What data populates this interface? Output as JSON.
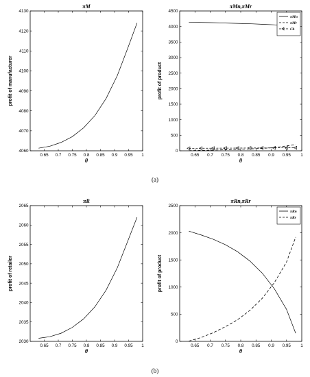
{
  "figure": {
    "caption_a": "(a)",
    "caption_b": "(b)"
  },
  "chart_data": [
    {
      "type": "line",
      "title": "πM",
      "title_main": "π",
      "title_sub": "M",
      "xlabel": "θ",
      "ylabel": "profit of manufacturer",
      "xlim": [
        0.6,
        1.0
      ],
      "ylim": [
        4060,
        4130
      ],
      "xticks": [
        0.65,
        0.7,
        0.75,
        0.8,
        0.85,
        0.9,
        0.95,
        1
      ],
      "xtick_labels": [
        "0.65",
        "0.7",
        "0.75",
        "0.8",
        "0.85",
        "0.9",
        "0.95",
        "1"
      ],
      "yticks": [
        4060,
        4070,
        4080,
        4090,
        4100,
        4110,
        4120,
        4130
      ],
      "ytick_labels": [
        "4060",
        "4070",
        "4080",
        "4090",
        "4100",
        "4110",
        "4120",
        "4130"
      ],
      "grid": false,
      "series": [
        {
          "style": "solid",
          "x": [
            0.63,
            0.67,
            0.71,
            0.75,
            0.79,
            0.83,
            0.87,
            0.91,
            0.95,
            0.98
          ],
          "y": [
            4061.3,
            4062.3,
            4064.2,
            4067.1,
            4071.5,
            4077.6,
            4086.2,
            4097.7,
            4112.5,
            4124
          ]
        }
      ]
    },
    {
      "type": "line",
      "title": "πMn,πMr",
      "xlabel": "θ",
      "ylabel": "profit of product",
      "xlim": [
        0.6,
        1.0
      ],
      "ylim": [
        0,
        4500
      ],
      "xticks": [
        0.65,
        0.7,
        0.75,
        0.8,
        0.85,
        0.9,
        0.95,
        1
      ],
      "xtick_labels": [
        "0.65",
        "0.7",
        "0.75",
        "0.8",
        "0.85",
        "0.9",
        "0.95",
        "1"
      ],
      "yticks": [
        0,
        500,
        1000,
        1500,
        2000,
        2500,
        3000,
        3500,
        4000,
        4500
      ],
      "ytick_labels": [
        "0",
        "500",
        "1000",
        "1500",
        "2000",
        "2500",
        "3000",
        "3500",
        "4000",
        "4500"
      ],
      "grid": false,
      "legend_position": "top-right",
      "series": [
        {
          "name": "πMn",
          "style": "solid",
          "x": [
            0.63,
            0.7,
            0.77,
            0.84,
            0.91,
            0.98
          ],
          "y": [
            4140,
            4125,
            4105,
            4085,
            4055,
            4000
          ]
        },
        {
          "name": "πMr",
          "style": "dashed",
          "x": [
            0.63,
            0.7,
            0.77,
            0.84,
            0.91,
            0.98
          ],
          "y": [
            5,
            20,
            40,
            65,
            100,
            200
          ]
        },
        {
          "name": "Cb",
          "style": "triangle",
          "x": [
            0.63,
            0.67,
            0.71,
            0.75,
            0.79,
            0.83,
            0.87,
            0.91,
            0.95,
            0.98
          ],
          "y": [
            80,
            82,
            84,
            86,
            88,
            90,
            92,
            94,
            96,
            98
          ]
        }
      ]
    },
    {
      "type": "line",
      "title": "πR",
      "xlabel": "θ",
      "ylabel": "profit of retailer",
      "xlim": [
        0.6,
        1.0
      ],
      "ylim": [
        2030,
        2065
      ],
      "xticks": [
        0.65,
        0.7,
        0.75,
        0.8,
        0.85,
        0.9,
        0.95,
        1
      ],
      "xtick_labels": [
        "0.65",
        "0.7",
        "0.75",
        "0.8",
        "0.85",
        "0.9",
        "0.95",
        "1"
      ],
      "yticks": [
        2030,
        2035,
        2040,
        2045,
        2050,
        2055,
        2060,
        2065
      ],
      "ytick_labels": [
        "2030",
        "2035",
        "2040",
        "2045",
        "2050",
        "2055",
        "2060",
        "2065"
      ],
      "grid": false,
      "series": [
        {
          "style": "solid",
          "x": [
            0.63,
            0.67,
            0.71,
            0.75,
            0.79,
            0.83,
            0.87,
            0.91,
            0.95,
            0.98
          ],
          "y": [
            2030.8,
            2031.2,
            2032.1,
            2033.6,
            2035.8,
            2038.9,
            2043.2,
            2049,
            2056.4,
            2062
          ]
        }
      ]
    },
    {
      "type": "line",
      "title": "πRn,πRr",
      "xlabel": "θ",
      "ylabel": "profit of product",
      "xlim": [
        0.6,
        1.0
      ],
      "ylim": [
        0,
        2500
      ],
      "xticks": [
        0.65,
        0.7,
        0.75,
        0.8,
        0.85,
        0.9,
        0.95,
        1
      ],
      "xtick_labels": [
        "0.65",
        "0.7",
        "0.75",
        "0.8",
        "0.85",
        "0.9",
        "0.95",
        "1"
      ],
      "yticks": [
        0,
        500,
        1000,
        1500,
        2000,
        2500
      ],
      "ytick_labels": [
        "0",
        "500",
        "1000",
        "1500",
        "2000",
        "2500"
      ],
      "grid": false,
      "legend_position": "top-right",
      "series": [
        {
          "name": "πRn",
          "style": "solid",
          "x": [
            0.63,
            0.67,
            0.71,
            0.75,
            0.79,
            0.83,
            0.87,
            0.91,
            0.95,
            0.98
          ],
          "y": [
            2030,
            1960,
            1880,
            1780,
            1650,
            1480,
            1260,
            970,
            590,
            150
          ]
        },
        {
          "name": "πRr",
          "style": "dashed",
          "x": [
            0.63,
            0.67,
            0.71,
            0.75,
            0.79,
            0.83,
            0.87,
            0.91,
            0.95,
            0.98
          ],
          "y": [
            5,
            70,
            160,
            270,
            400,
            570,
            790,
            1080,
            1460,
            1920
          ]
        }
      ]
    }
  ]
}
